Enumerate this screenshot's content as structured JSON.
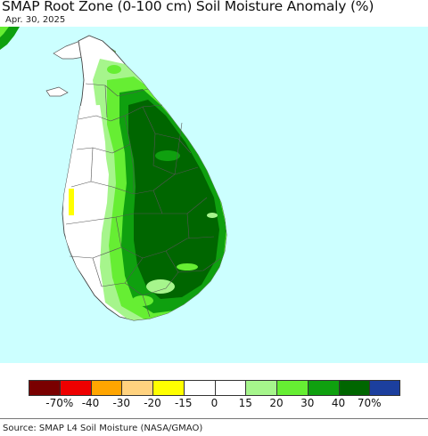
{
  "title": "SMAP Root Zone (0-100 cm) Soil Moisture Anomaly (%)",
  "date": "Apr. 30, 2025",
  "source": "Source: SMAP L4 Soil Moisture (NASA/GMAO)",
  "colors": {
    "ocean": "#ccffff",
    "land_normal": "#ffffff",
    "boundary": "#555555"
  },
  "legend": {
    "colors": [
      "#7a0000",
      "#ee0000",
      "#ffa500",
      "#ffd27f",
      "#ffff00",
      "#ffffff",
      "#ffffff",
      "#a6f58c",
      "#66ee33",
      "#0fa00f",
      "#006600",
      "#1c3f9e"
    ],
    "ticks": [
      "-70%",
      "-40",
      "-30",
      "-20",
      "-15",
      "0",
      "15",
      "20",
      "30",
      "40",
      "70%"
    ]
  }
}
